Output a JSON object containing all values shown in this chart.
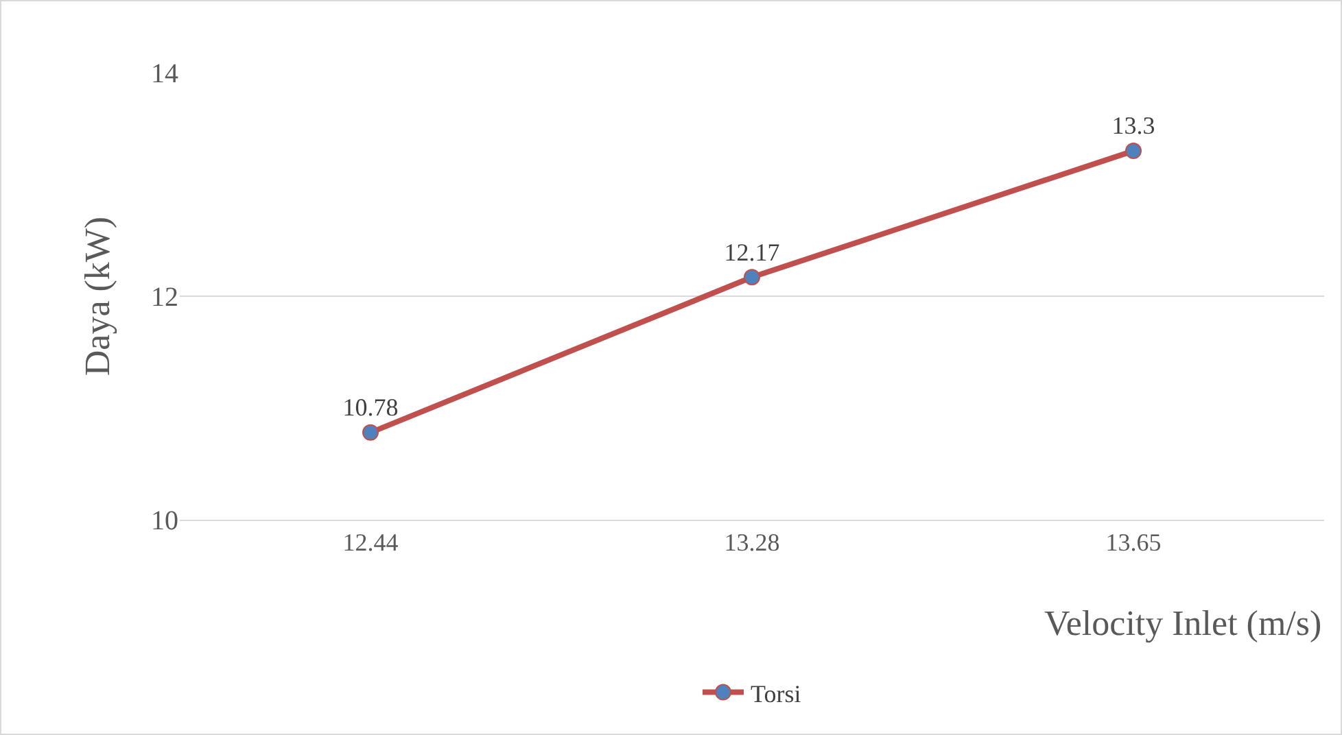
{
  "chart_data": {
    "type": "line",
    "xlabel": "Velocity Inlet (m/s)",
    "ylabel": "Daya (kW)",
    "categories": [
      "12.44",
      "13.28",
      "13.65"
    ],
    "series": [
      {
        "name": "Torsi",
        "color": "#c0504d",
        "values": [
          10.78,
          12.17,
          13.3
        ]
      }
    ],
    "ylim": [
      10,
      14
    ],
    "yticks": [
      10,
      12,
      14
    ],
    "grid": "y",
    "legend": "bottom",
    "marker": "circle",
    "data_labels": true
  }
}
